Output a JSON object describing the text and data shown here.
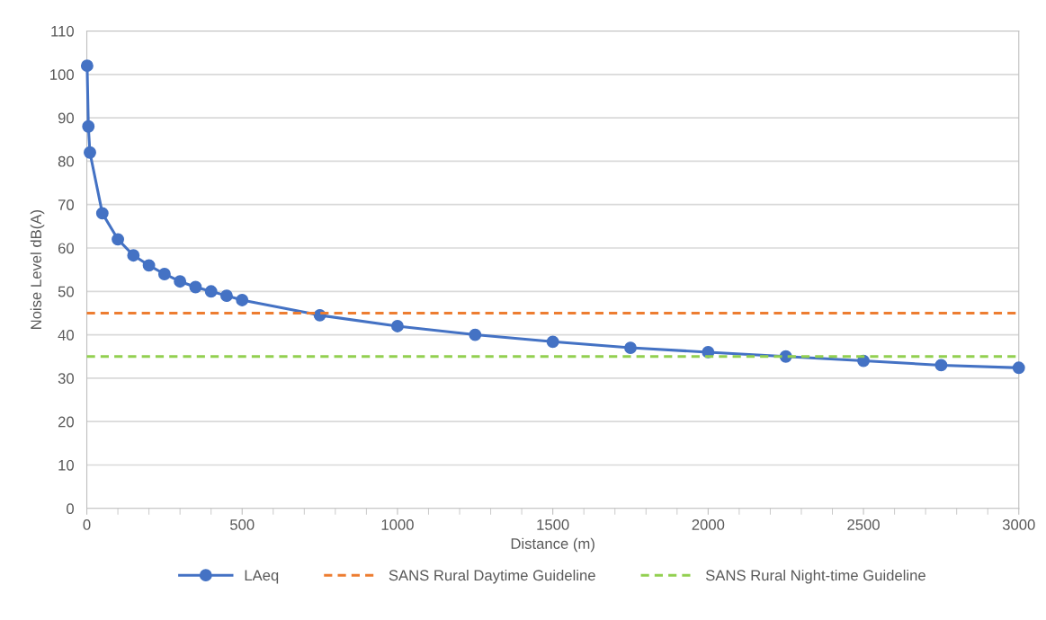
{
  "chart_data": {
    "type": "line",
    "xlabel": "Distance (m)",
    "ylabel": "Noise Level dB(A)",
    "xlim": [
      0,
      3000
    ],
    "xticks": [
      0,
      500,
      1000,
      1500,
      2000,
      2500,
      3000
    ],
    "ylim": [
      0,
      110
    ],
    "yticks": [
      0,
      10,
      20,
      30,
      40,
      50,
      60,
      70,
      80,
      90,
      100,
      110
    ],
    "grid": "y",
    "legend": "bottom",
    "series": [
      {
        "name": "LAeq",
        "color": "#4472c4",
        "marker": "circle",
        "line_style": "solid",
        "x": [
          1,
          5,
          10,
          50,
          100,
          150,
          200,
          250,
          300,
          350,
          400,
          450,
          500,
          750,
          1000,
          1250,
          1500,
          1750,
          2000,
          2250,
          2500,
          2750,
          3000
        ],
        "values": [
          102,
          88,
          82,
          68,
          62,
          58.3,
          56,
          54,
          52.3,
          51,
          50,
          49,
          48,
          44.5,
          42,
          40,
          38.4,
          37,
          36,
          35,
          34,
          33,
          32.4
        ]
      },
      {
        "name": "SANS Rural Daytime Guideline",
        "color": "#ed7d31",
        "marker": "none",
        "line_style": "dashed",
        "x": [
          0,
          3000
        ],
        "values": [
          45,
          45
        ]
      },
      {
        "name": "SANS Rural Night-time Guideline",
        "color": "#92d050",
        "marker": "none",
        "line_style": "dashed",
        "x": [
          0,
          3000
        ],
        "values": [
          35,
          35
        ]
      }
    ]
  }
}
